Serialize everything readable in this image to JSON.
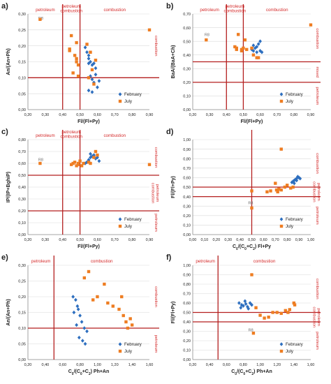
{
  "colors": {
    "february": "#2e6fbf",
    "july": "#ee7d22",
    "threshold": "#b41f1f",
    "region_text": "#d42a2a",
    "grid": "#d9d9d9",
    "axis": "#8c8c8c",
    "text": "#222222"
  },
  "chart_data": [
    {
      "panel": "a)",
      "type": "scatter",
      "xlabel": "Fl/(Fl+Py)",
      "ylabel": "An/(An+Ph)",
      "xlim": [
        0.2,
        0.9
      ],
      "ylim": [
        0,
        0.3
      ],
      "xticks": [
        "0,20",
        "0,30",
        "0,40",
        "0,50",
        "0,60",
        "0,70",
        "0,80",
        "0,90"
      ],
      "yticks": [
        "0,00",
        "0,05",
        "0,10",
        "0,15",
        "0,20",
        "0,25",
        "0,30"
      ],
      "vlines": [
        0.4,
        0.5
      ],
      "hlines": [
        0.1
      ],
      "top_labels": [
        {
          "text": "petroleum",
          "x": 0.3
        },
        {
          "text": "petroleum\ncombustion",
          "x": 0.45
        },
        {
          "text": "combustion",
          "x": 0.7
        }
      ],
      "right_labels": [
        {
          "text": "combustion",
          "y": 0.2
        }
      ],
      "annotations": [
        {
          "text": "R8",
          "x": 0.26,
          "y": 0.283
        }
      ],
      "legend": {
        "position": "bottom-right"
      },
      "series": [
        {
          "name": "February",
          "marker": "diamond",
          "x": [
            0.53,
            0.54,
            0.55,
            0.55,
            0.56,
            0.55,
            0.57,
            0.58,
            0.59,
            0.59,
            0.56,
            0.57,
            0.61,
            0.58,
            0.6,
            0.55,
            0.57
          ],
          "y": [
            0.195,
            0.18,
            0.17,
            0.16,
            0.15,
            0.145,
            0.14,
            0.145,
            0.13,
            0.11,
            0.105,
            0.095,
            0.09,
            0.085,
            0.07,
            0.06,
            0.055
          ]
        },
        {
          "name": "July",
          "marker": "square",
          "x": [
            0.27,
            0.45,
            0.44,
            0.44,
            0.47,
            0.48,
            0.48,
            0.49,
            0.46,
            0.49,
            0.48,
            0.54,
            0.56,
            0.59,
            0.57,
            0.55,
            0.58,
            0.9
          ],
          "y": [
            0.283,
            0.232,
            0.19,
            0.185,
            0.17,
            0.16,
            0.15,
            0.14,
            0.115,
            0.105,
            0.21,
            0.205,
            0.18,
            0.155,
            0.125,
            0.1,
            0.08,
            0.25
          ]
        }
      ]
    },
    {
      "panel": "b)",
      "type": "scatter",
      "xlabel": "Fl/(Fl+Py)",
      "ylabel": "BaA/(BaA+Ch)",
      "xlim": [
        0.2,
        0.9
      ],
      "ylim": [
        0,
        0.7
      ],
      "xticks": [
        "0,20",
        "0,30",
        "0,40",
        "0,50",
        "0,60",
        "0,70",
        "0,80",
        "0,90"
      ],
      "yticks": [
        "0,00",
        "0,10",
        "0,20",
        "0,30",
        "0,40",
        "0,50",
        "0,60",
        "0,70"
      ],
      "vlines": [
        0.4,
        0.5
      ],
      "hlines": [
        0.2,
        0.35
      ],
      "top_labels": [
        {
          "text": "petroleum",
          "x": 0.3
        },
        {
          "text": "petroleum\ncombustion",
          "x": 0.45
        },
        {
          "text": "combustion",
          "x": 0.7
        }
      ],
      "right_labels": [
        {
          "text": "combustion",
          "y": 0.52
        },
        {
          "text": "mixed",
          "y": 0.275
        },
        {
          "text": "petroleum",
          "y": 0.1
        }
      ],
      "annotations": [
        {
          "text": "R8",
          "x": 0.27,
          "y": 0.54
        }
      ],
      "legend": {
        "position": "bottom-right"
      },
      "series": [
        {
          "name": "February",
          "marker": "diamond",
          "x": [
            0.55,
            0.56,
            0.57,
            0.58,
            0.59,
            0.6,
            0.56,
            0.58,
            0.6,
            0.61
          ],
          "y": [
            0.44,
            0.43,
            0.45,
            0.46,
            0.48,
            0.5,
            0.47,
            0.42,
            0.43,
            0.42
          ]
        },
        {
          "name": "July",
          "marker": "square",
          "x": [
            0.28,
            0.45,
            0.46,
            0.47,
            0.49,
            0.49,
            0.5,
            0.51,
            0.52,
            0.55,
            0.56,
            0.58,
            0.59,
            0.46,
            0.9
          ],
          "y": [
            0.51,
            0.46,
            0.45,
            0.55,
            0.44,
            0.43,
            0.45,
            0.51,
            0.44,
            0.45,
            0.4,
            0.38,
            0.38,
            0.44,
            0.62
          ]
        }
      ]
    },
    {
      "panel": "c)",
      "type": "scatter",
      "xlabel": "Fl/(Fl+Py)",
      "ylabel": "IP/(IP+BghiP)",
      "xlim": [
        0.2,
        0.9
      ],
      "ylim": [
        0,
        0.8
      ],
      "xticks": [
        "0,20",
        "0,30",
        "0,40",
        "0,50",
        "0,60",
        "0,70",
        "0,80",
        "0,90"
      ],
      "yticks": [
        "0,00",
        "0,10",
        "0,20",
        "0,30",
        "0,40",
        "0,50",
        "0,60",
        "0,70",
        "0,80"
      ],
      "vlines": [
        0.4,
        0.5
      ],
      "hlines": [
        0.2,
        0.5
      ],
      "top_labels": [
        {
          "text": "petroleum",
          "x": 0.3
        },
        {
          "text": "petroleum\ncombustion",
          "x": 0.45
        },
        {
          "text": "combustion",
          "x": 0.7
        }
      ],
      "right_labels": [
        {
          "text": "combustion",
          "y": 0.65
        },
        {
          "text": "petroleum\ncombustion",
          "y": 0.35
        },
        {
          "text": "petroleum",
          "y": 0.1
        }
      ],
      "annotations": [
        {
          "text": "R8",
          "x": 0.26,
          "y": 0.62
        }
      ],
      "legend": {
        "position": "bottom-right"
      },
      "series": [
        {
          "name": "February",
          "marker": "diamond",
          "x": [
            0.53,
            0.54,
            0.55,
            0.56,
            0.57,
            0.58,
            0.59,
            0.6,
            0.56,
            0.58,
            0.61,
            0.55
          ],
          "y": [
            0.6,
            0.61,
            0.62,
            0.65,
            0.66,
            0.67,
            0.64,
            0.65,
            0.68,
            0.66,
            0.62,
            0.63
          ]
        },
        {
          "name": "July",
          "marker": "square",
          "x": [
            0.27,
            0.45,
            0.46,
            0.47,
            0.49,
            0.49,
            0.5,
            0.51,
            0.52,
            0.55,
            0.56,
            0.58,
            0.59,
            0.6,
            0.48,
            0.9
          ],
          "y": [
            0.6,
            0.59,
            0.6,
            0.61,
            0.6,
            0.59,
            0.62,
            0.58,
            0.6,
            0.61,
            0.6,
            0.65,
            0.7,
            0.67,
            0.58,
            0.59
          ]
        }
      ]
    },
    {
      "panel": "d)",
      "type": "scatter",
      "xlabel": "C0/(C0+C2) Fl+Py",
      "ylabel": "Fl/(Fl+Py)",
      "xlim": [
        0,
        1
      ],
      "ylim": [
        0,
        1
      ],
      "xticks": [
        "0,00",
        "0,10",
        "0,20",
        "0,30",
        "0,40",
        "0,50",
        "0,60",
        "0,70",
        "0,80",
        "0,90",
        "1,00"
      ],
      "yticks": [
        "0,00",
        "0,10",
        "0,20",
        "0,30",
        "0,40",
        "0,50",
        "0,60",
        "0,70",
        "0,80",
        "0,90",
        "1,00"
      ],
      "vlines": [
        0.5
      ],
      "hlines": [
        0.4,
        0.5
      ],
      "top_labels": [],
      "right_labels": [
        {
          "text": "combustion",
          "y": 0.75
        },
        {
          "text": "petroleum\ncombustion",
          "y": 0.45
        },
        {
          "text": "petroleum",
          "y": 0.2
        }
      ],
      "annotations": [
        {
          "text": "R8",
          "x": 0.47,
          "y": 0.32
        }
      ],
      "legend": {
        "position": "bottom-right"
      },
      "series": [
        {
          "name": "February",
          "marker": "diamond",
          "x": [
            0.84,
            0.85,
            0.86,
            0.87,
            0.88,
            0.89,
            0.9,
            0.86,
            0.88,
            0.91
          ],
          "y": [
            0.55,
            0.56,
            0.57,
            0.58,
            0.59,
            0.61,
            0.6,
            0.54,
            0.57,
            0.59
          ]
        },
        {
          "name": "July",
          "marker": "square",
          "x": [
            0.5,
            0.5,
            0.63,
            0.66,
            0.7,
            0.71,
            0.72,
            0.75,
            0.78,
            0.8,
            0.83,
            0.85,
            0.73,
            0.75
          ],
          "y": [
            0.46,
            0.28,
            0.45,
            0.46,
            0.54,
            0.47,
            0.45,
            0.47,
            0.5,
            0.52,
            0.49,
            0.5,
            0.48,
            0.9
          ]
        }
      ]
    },
    {
      "panel": "e)",
      "type": "scatter",
      "xlabel": "C0/(C0+C2) Ph+An",
      "ylabel": "An/(An+Ph)",
      "xlim": [
        0.2,
        1.6
      ],
      "ylim": [
        0,
        0.3
      ],
      "xticks": [
        "0,20",
        "0,40",
        "0,60",
        "0,80",
        "1,00",
        "1,20",
        "1,40",
        "1,60"
      ],
      "yticks": [
        "0,00",
        "0,05",
        "0,10",
        "0,15",
        "0,20",
        "0,25",
        "0,30"
      ],
      "vlines": [
        0.5
      ],
      "hlines": [
        0.1
      ],
      "top_labels": [
        {
          "text": "petroleum",
          "x": 0.35
        },
        {
          "text": "combustion",
          "x": 1.05
        }
      ],
      "right_labels": [
        {
          "text": "combustion",
          "y": 0.2
        },
        {
          "text": "petroleum",
          "y": 0.05
        }
      ],
      "annotations": [],
      "legend": {
        "position": "bottom-right"
      },
      "series": [
        {
          "name": "February",
          "marker": "diamond",
          "x": [
            0.72,
            0.75,
            0.77,
            0.78,
            0.8,
            0.82,
            0.85,
            0.88,
            0.76,
            0.79,
            0.83,
            0.86,
            0.73
          ],
          "y": [
            0.2,
            0.19,
            0.17,
            0.16,
            0.14,
            0.12,
            0.1,
            0.09,
            0.11,
            0.07,
            0.06,
            0.05,
            0.15
          ]
        },
        {
          "name": "July",
          "marker": "square",
          "x": [
            0.85,
            0.9,
            0.95,
            1.0,
            1.08,
            1.12,
            1.18,
            1.25,
            1.3,
            1.33,
            1.38,
            1.4,
            1.35,
            1.28
          ],
          "y": [
            0.26,
            0.28,
            0.19,
            0.2,
            0.24,
            0.18,
            0.17,
            0.16,
            0.14,
            0.12,
            0.13,
            0.11,
            0.1,
            0.2
          ]
        }
      ]
    },
    {
      "panel": "f)",
      "type": "scatter",
      "xlabel": "C0/(C0+C2) Ph+An",
      "ylabel": "Fl/(Fl+Py)",
      "xlim": [
        0.2,
        1.6
      ],
      "ylim": [
        0,
        1
      ],
      "xticks": [
        "0,20",
        "0,40",
        "0,60",
        "0,80",
        "1,00",
        "1,20",
        "1,40",
        "1,60"
      ],
      "yticks": [
        "0,00",
        "0,10",
        "0,20",
        "0,30",
        "0,40",
        "0,50",
        "0,60",
        "0,70",
        "0,80",
        "0,90",
        "1,00"
      ],
      "vlines": [
        0.5
      ],
      "hlines": [
        0.4,
        0.5
      ],
      "top_labels": [
        {
          "text": "petroleum",
          "x": 0.35
        },
        {
          "text": "combustion",
          "x": 1.05
        }
      ],
      "right_labels": [
        {
          "text": "combustion",
          "y": 0.75
        },
        {
          "text": "petroleum\ncombustion",
          "y": 0.45
        },
        {
          "text": "petroleum",
          "y": 0.2
        }
      ],
      "annotations": [
        {
          "text": "R8",
          "x": 0.86,
          "y": 0.3
        }
      ],
      "legend": {
        "position": "bottom-right"
      },
      "series": [
        {
          "name": "February",
          "marker": "diamond",
          "x": [
            0.75,
            0.78,
            0.8,
            0.82,
            0.85,
            0.88,
            0.9,
            0.77,
            0.83,
            0.86
          ],
          "y": [
            0.6,
            0.58,
            0.57,
            0.62,
            0.56,
            0.6,
            0.58,
            0.55,
            0.59,
            0.54
          ]
        },
        {
          "name": "July",
          "marker": "square",
          "x": [
            0.9,
            0.95,
            1.0,
            1.05,
            1.1,
            1.2,
            1.25,
            1.3,
            1.33,
            1.35,
            1.4,
            1.41,
            0.92,
            1.15
          ],
          "y": [
            0.9,
            0.55,
            0.47,
            0.44,
            0.45,
            0.5,
            0.49,
            0.52,
            0.5,
            0.53,
            0.6,
            0.58,
            0.28,
            0.5
          ]
        }
      ]
    }
  ]
}
